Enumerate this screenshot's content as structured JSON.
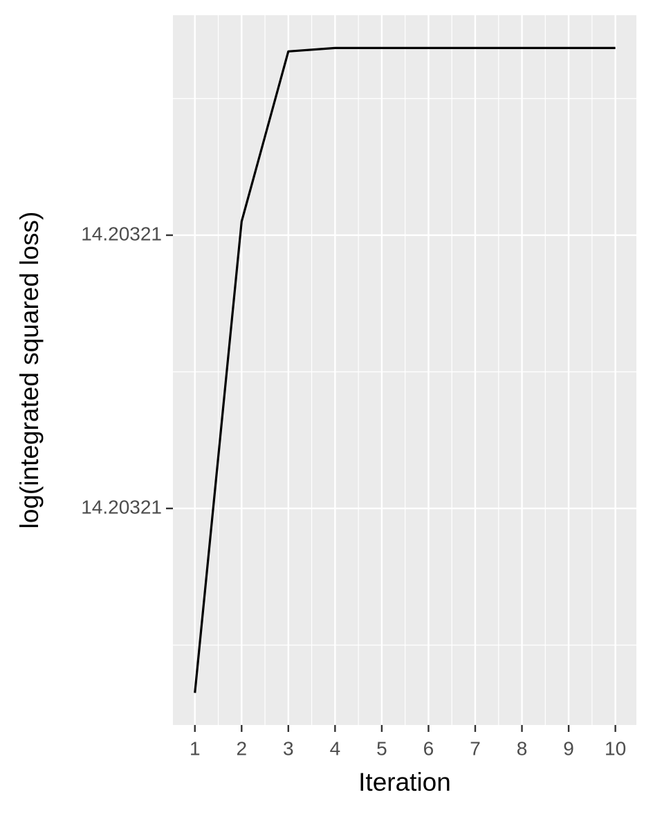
{
  "chart_data": {
    "type": "line",
    "x_label": "Iteration",
    "y_label": "log(integrated squared loss)",
    "x": [
      1,
      2,
      3,
      4,
      5,
      6,
      7,
      8,
      9,
      10
    ],
    "series": [
      {
        "color": "#000000",
        "values": [
          14.2032053,
          14.2032122,
          14.20321469,
          14.20321474,
          14.20321474,
          14.20321474,
          14.20321474,
          14.20321474,
          14.20321474,
          14.20321474
        ]
      }
    ],
    "xlim": [
      0.53,
      10.45
    ],
    "xticks": [
      1,
      2,
      3,
      4,
      5,
      6,
      7,
      8,
      9,
      10
    ],
    "ylim": [
      14.20320483,
      14.20321522
    ],
    "yticks": [
      {
        "value": 14.203208,
        "label": "14.20321"
      },
      {
        "value": 14.203212,
        "label": "14.20321"
      }
    ],
    "grid": true
  }
}
